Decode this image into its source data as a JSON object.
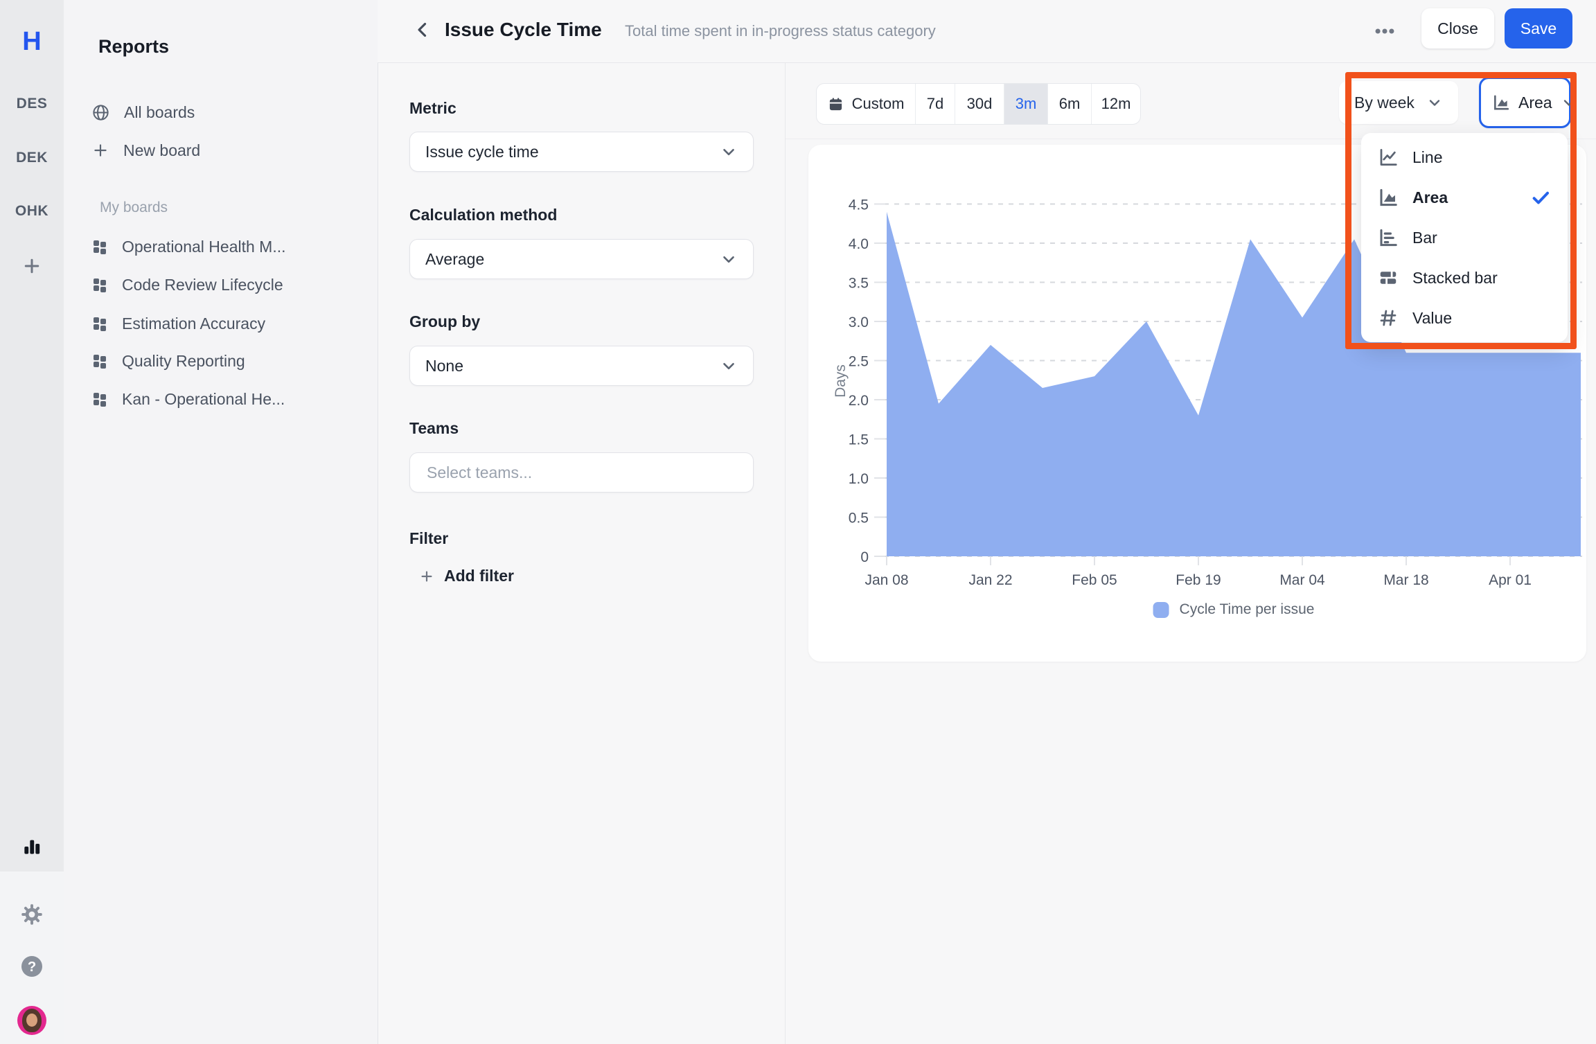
{
  "rail": {
    "logo": "H",
    "workspaces": [
      {
        "label": "DES"
      },
      {
        "label": "DEK"
      },
      {
        "label": "OHK"
      }
    ]
  },
  "sidebar": {
    "title": "Reports",
    "all_boards": "All boards",
    "new_board": "New board",
    "section_label": "My boards",
    "boards": [
      {
        "label": "Operational Health M..."
      },
      {
        "label": "Code Review Lifecycle"
      },
      {
        "label": "Estimation Accuracy"
      },
      {
        "label": "Quality Reporting"
      },
      {
        "label": "Kan - Operational He..."
      }
    ]
  },
  "header": {
    "title": "Issue Cycle Time",
    "subtitle": "Total time spent in in-progress status category",
    "close_label": "Close",
    "save_label": "Save"
  },
  "form": {
    "metric_label": "Metric",
    "metric_value": "Issue cycle time",
    "calc_label": "Calculation method",
    "calc_value": "Average",
    "group_label": "Group by",
    "group_value": "None",
    "teams_label": "Teams",
    "teams_placeholder": "Select teams...",
    "filter_label": "Filter",
    "add_filter_label": "Add filter"
  },
  "toolbar": {
    "custom": "Custom",
    "r7d": "7d",
    "r30d": "30d",
    "r3m": "3m",
    "r6m": "6m",
    "r12m": "12m",
    "selected_range": "3m",
    "interval_value": "By week",
    "chart_type_value": "Area"
  },
  "chart_type_menu": {
    "line": "Line",
    "area": "Area",
    "bar": "Bar",
    "stacked": "Stacked bar",
    "value": "Value",
    "selected": "Area"
  },
  "chart_data": {
    "type": "area",
    "ylabel": "Days",
    "legend": "Cycle Time per issue",
    "x": [
      "Jan 08",
      "Jan 15",
      "Jan 22",
      "Jan 29",
      "Feb 05",
      "Feb 12",
      "Feb 19",
      "Feb 26",
      "Mar 04",
      "Mar 11",
      "Mar 18",
      "Mar 25",
      "Apr 01",
      "Apr 08"
    ],
    "values": [
      4.4,
      1.95,
      2.7,
      2.15,
      2.3,
      3.0,
      1.8,
      4.05,
      3.05,
      4.05,
      2.6,
      2.6,
      2.6,
      2.6
    ],
    "x_tick_labels": [
      "Jan 08",
      "Jan 22",
      "Feb 05",
      "Feb 19",
      "Mar 04",
      "Mar 18",
      "Apr 01"
    ],
    "y_ticks": [
      0,
      0.5,
      1,
      1.5,
      2,
      2.5,
      3,
      3.5,
      4,
      4.5
    ],
    "y_tick_labels": [
      "0",
      "0.5",
      "1.0",
      "1.5",
      "2.0",
      "2.5",
      "3.0",
      "3.5",
      "4.0",
      "4.5"
    ],
    "ylim": [
      0,
      4.5
    ],
    "grid": "horizontal-dotted",
    "legend_position": "bottom"
  },
  "colors": {
    "accent": "#2563EB",
    "area_fill": "#8FAEF0",
    "annotation_orange": "#F1511B",
    "selected_segment_bg": "#E3E5EA"
  }
}
